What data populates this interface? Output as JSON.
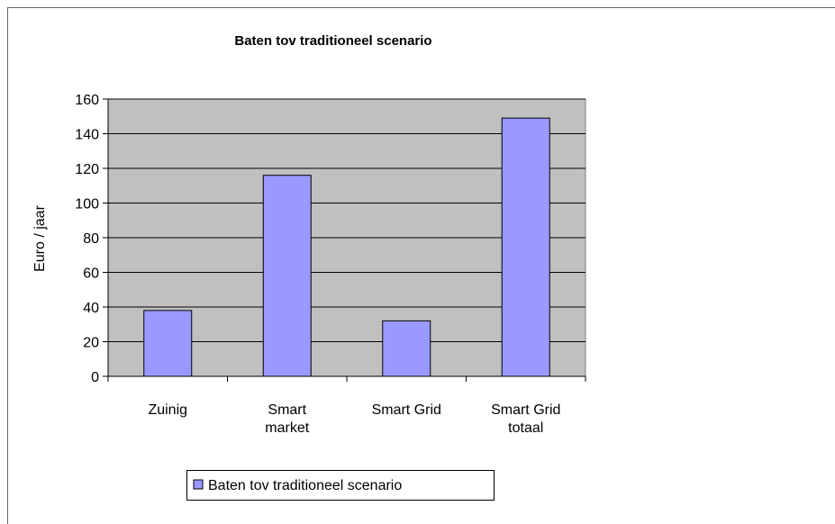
{
  "chart_data": {
    "type": "bar",
    "title": "Baten tov traditioneel scenario",
    "y_label": "Euro / jaar",
    "categories": [
      "Zuinig",
      "Smart\nmarket",
      "Smart Grid",
      "Smart Grid\ntotaal"
    ],
    "series": [
      {
        "name": "Baten tov traditioneel scenario",
        "color": "#9999ff",
        "values": [
          38,
          116,
          32,
          149
        ]
      }
    ],
    "ylim": [
      0,
      160
    ],
    "yticks": [
      0,
      20,
      40,
      60,
      80,
      100,
      120,
      140,
      160
    ],
    "grid": true,
    "legend": "bottom"
  }
}
